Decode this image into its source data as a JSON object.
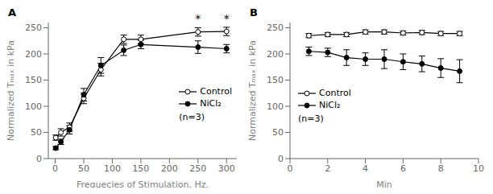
{
  "chart_data": [
    {
      "type": "line",
      "title": "A",
      "x": [
        1,
        10,
        25,
        50,
        80,
        120,
        150,
        250,
        300
      ],
      "series": [
        {
          "name": "Control",
          "color": "#000000",
          "marker": "open_circle",
          "line_style": "solid",
          "values": [
            40,
            50,
            60,
            115,
            170,
            228,
            228,
            242,
            243
          ],
          "errors": [
            5,
            7,
            8,
            10,
            12,
            8,
            8,
            8,
            8
          ]
        },
        {
          "name": "NiCl₂",
          "color": "#000000",
          "marker": "circle",
          "line_style": "solid",
          "values": [
            20,
            32,
            55,
            122,
            178,
            207,
            218,
            213,
            210
          ],
          "errors": [
            3,
            5,
            8,
            12,
            15,
            10,
            8,
            12,
            8
          ]
        }
      ],
      "xlabel": "Frequecies of Stimulation, Hz.",
      "ylabel": "Normalized Tₘₐₓ in kPa",
      "xlim": [
        -12,
        318
      ],
      "ylim": [
        0,
        260
      ],
      "xticks": [
        0,
        50,
        100,
        150,
        200,
        250,
        300
      ],
      "yticks": [
        0,
        50,
        100,
        150,
        200,
        250
      ],
      "annotations": [
        {
          "text": "*",
          "x": 250,
          "y": 253
        },
        {
          "text": "*",
          "x": 300,
          "y": 253
        },
        {
          "text": "(n=3)"
        }
      ],
      "legend": "right",
      "grid": false
    },
    {
      "type": "line",
      "title": "B",
      "x": [
        1,
        2,
        3,
        4,
        5,
        6,
        7,
        8,
        9
      ],
      "series": [
        {
          "name": "Control",
          "color": "#000000",
          "marker": "open_circle",
          "line_style": "solid",
          "values": [
            235,
            237,
            237,
            242,
            242,
            240,
            241,
            239,
            239
          ],
          "errors": [
            4,
            4,
            4,
            4,
            4,
            4,
            4,
            4,
            4
          ]
        },
        {
          "name": "NiCl₂",
          "color": "#000000",
          "marker": "circle",
          "line_style": "solid",
          "values": [
            205,
            203,
            193,
            190,
            190,
            185,
            181,
            173,
            167
          ],
          "errors": [
            8,
            8,
            15,
            12,
            18,
            15,
            15,
            18,
            22
          ]
        }
      ],
      "xlabel": "Min",
      "ylabel": "Normalized Tₘₐₓ in kPa",
      "xlim": [
        0,
        10
      ],
      "ylim": [
        0,
        260
      ],
      "xticks": [
        0,
        2,
        4,
        6,
        8,
        10
      ],
      "yticks": [
        0,
        50,
        100,
        150,
        200,
        250
      ],
      "annotations": [
        {
          "text": "(n=3)"
        }
      ],
      "legend": "left",
      "grid": false
    }
  ]
}
